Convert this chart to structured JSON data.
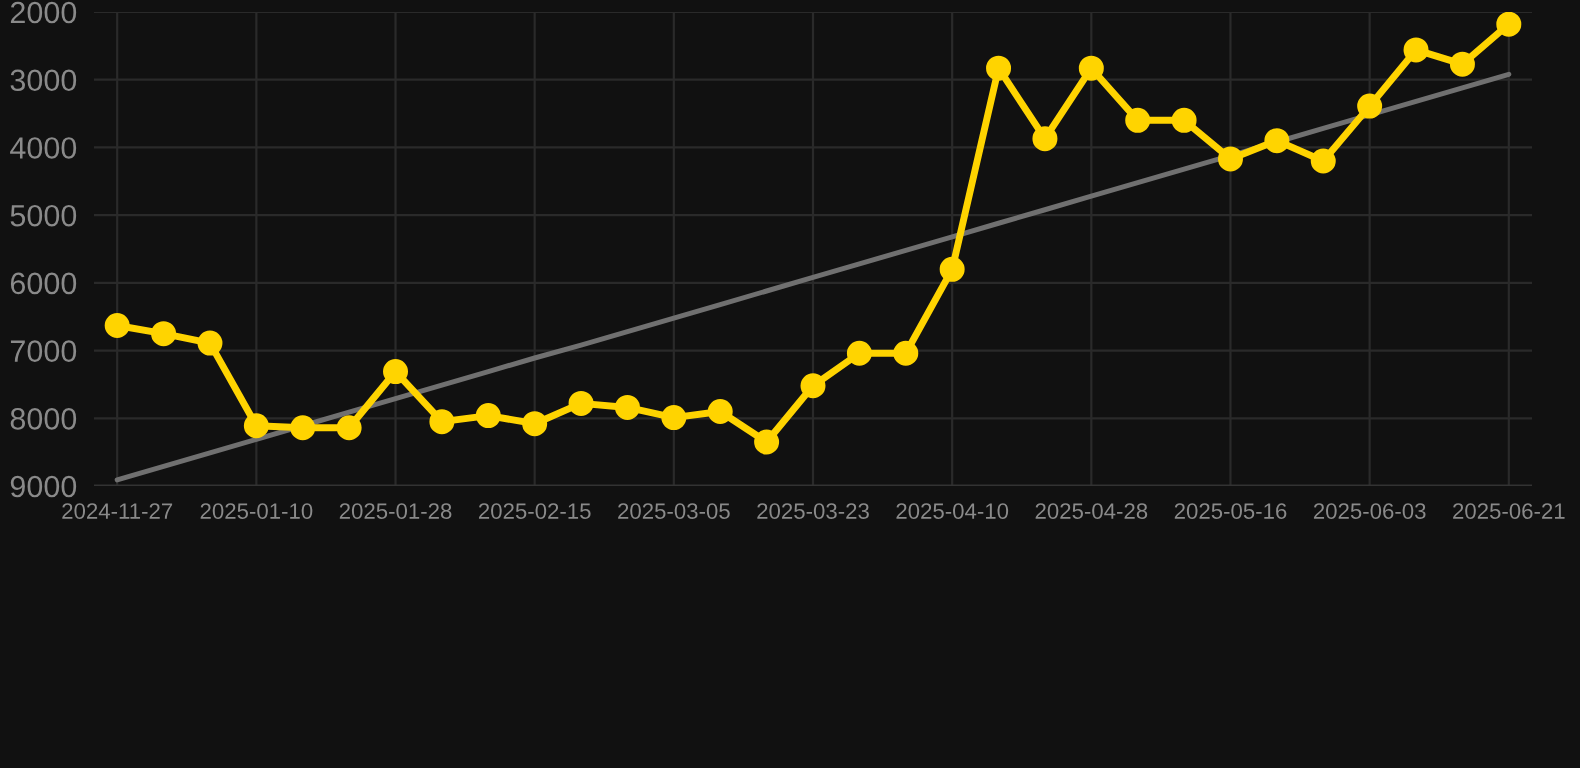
{
  "chart_data": {
    "type": "line",
    "categories": [
      "2024-11-27",
      null,
      null,
      "2025-01-10",
      null,
      null,
      "2025-01-28",
      null,
      null,
      "2025-02-15",
      null,
      null,
      "2025-03-05",
      null,
      null,
      "2025-03-23",
      null,
      null,
      "2025-04-10",
      null,
      null,
      "2025-04-28",
      null,
      null,
      "2025-05-16",
      null,
      null,
      "2025-06-03",
      null,
      null,
      "2025-06-21"
    ],
    "series": [
      {
        "color": "#ffd400",
        "marker": "circle",
        "values": [
          6630,
          6750,
          6890,
          8110,
          8140,
          8140,
          7310,
          8050,
          7960,
          8080,
          7780,
          7840,
          7990,
          7900,
          8350,
          7520,
          7040,
          7040,
          5800,
          2830,
          3870,
          2830,
          3600,
          3600,
          4170,
          3900,
          4200,
          3390,
          2560,
          2770,
          2180
        ]
      },
      {
        "color": "#707070",
        "marker": "none",
        "values": [
          8910,
          8710,
          8510,
          8310,
          8110,
          7910,
          7710,
          7510,
          7310,
          7110,
          6920,
          6720,
          6520,
          6320,
          6120,
          5920,
          5720,
          5520,
          5320,
          5120,
          4920,
          4720,
          4520,
          4320,
          4120,
          3920,
          3720,
          3520,
          3320,
          3120,
          2920
        ]
      }
    ],
    "ylim": [
      9000,
      2000
    ],
    "yticks": [
      2000,
      3000,
      4000,
      5000,
      6000,
      7000,
      8000,
      9000
    ],
    "grid": true
  }
}
